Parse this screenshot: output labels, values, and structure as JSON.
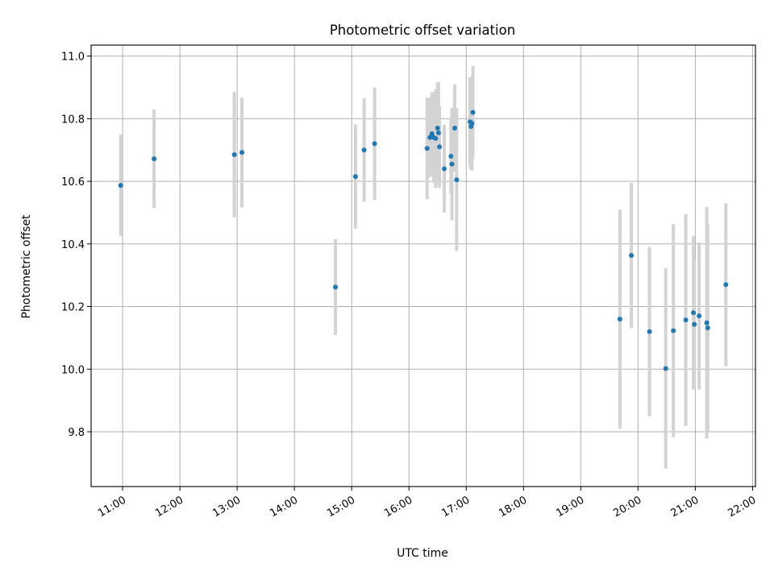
{
  "chart_data": {
    "type": "scatter",
    "title": "Photometric offset variation",
    "xlabel": "UTC time",
    "ylabel": "Photometric offset",
    "x_ticks": [
      "11:00",
      "12:00",
      "13:00",
      "14:00",
      "15:00",
      "16:00",
      "17:00",
      "18:00",
      "19:00",
      "20:00",
      "21:00",
      "22:00"
    ],
    "y_ticks": [
      "9.8",
      "10.0",
      "10.2",
      "10.4",
      "10.6",
      "10.8",
      "11.0"
    ],
    "xlim": [
      "10:27",
      "22:03"
    ],
    "ylim": [
      9.625,
      11.035
    ],
    "grid": true,
    "marker_color": "#1f77b4",
    "errorbar_color": "#d3d3d3",
    "points": [
      {
        "x": "10:58",
        "y": 10.587,
        "yerr": 0.162
      },
      {
        "x": "11:33",
        "y": 10.672,
        "yerr": 0.157
      },
      {
        "x": "12:57",
        "y": 10.685,
        "yerr": 0.2
      },
      {
        "x": "13:05",
        "y": 10.692,
        "yerr": 0.175
      },
      {
        "x": "14:43",
        "y": 10.262,
        "yerr": 0.153
      },
      {
        "x": "15:04",
        "y": 10.615,
        "yerr": 0.167
      },
      {
        "x": "15:13",
        "y": 10.7,
        "yerr": 0.165
      },
      {
        "x": "15:24",
        "y": 10.72,
        "yerr": 0.18
      },
      {
        "x": "16:19",
        "y": 10.705,
        "yerr": 0.162
      },
      {
        "x": "16:22",
        "y": 10.74,
        "yerr": 0.127
      },
      {
        "x": "16:24",
        "y": 10.752,
        "yerr": 0.132
      },
      {
        "x": "16:26",
        "y": 10.74,
        "yerr": 0.145
      },
      {
        "x": "16:28",
        "y": 10.737,
        "yerr": 0.158
      },
      {
        "x": "16:30",
        "y": 10.77,
        "yerr": 0.145
      },
      {
        "x": "16:31",
        "y": 10.755,
        "yerr": 0.162
      },
      {
        "x": "16:32",
        "y": 10.71,
        "yerr": 0.13
      },
      {
        "x": "16:37",
        "y": 10.64,
        "yerr": 0.14
      },
      {
        "x": "16:44",
        "y": 10.68,
        "yerr": 0.12
      },
      {
        "x": "16:45",
        "y": 10.655,
        "yerr": 0.18
      },
      {
        "x": "16:48",
        "y": 10.77,
        "yerr": 0.14
      },
      {
        "x": "16:50",
        "y": 10.605,
        "yerr": 0.228
      },
      {
        "x": "17:04",
        "y": 10.79,
        "yerr": 0.142
      },
      {
        "x": "17:05",
        "y": 10.775,
        "yerr": 0.14
      },
      {
        "x": "17:06",
        "y": 10.785,
        "yerr": 0.15
      },
      {
        "x": "17:07",
        "y": 10.82,
        "yerr": 0.148
      },
      {
        "x": "19:41",
        "y": 10.16,
        "yerr": 0.35
      },
      {
        "x": "19:53",
        "y": 10.363,
        "yerr": 0.232
      },
      {
        "x": "20:12",
        "y": 10.12,
        "yerr": 0.27
      },
      {
        "x": "20:29",
        "y": 10.002,
        "yerr": 0.32
      },
      {
        "x": "20:37",
        "y": 10.123,
        "yerr": 0.34
      },
      {
        "x": "20:50",
        "y": 10.157,
        "yerr": 0.338
      },
      {
        "x": "20:58",
        "y": 10.18,
        "yerr": 0.245
      },
      {
        "x": "20:59",
        "y": 10.143,
        "yerr": 0.205
      },
      {
        "x": "21:04",
        "y": 10.17,
        "yerr": 0.235
      },
      {
        "x": "21:12",
        "y": 10.148,
        "yerr": 0.37
      },
      {
        "x": "21:13",
        "y": 10.132,
        "yerr": 0.33
      },
      {
        "x": "21:32",
        "y": 10.27,
        "yerr": 0.26
      }
    ]
  }
}
